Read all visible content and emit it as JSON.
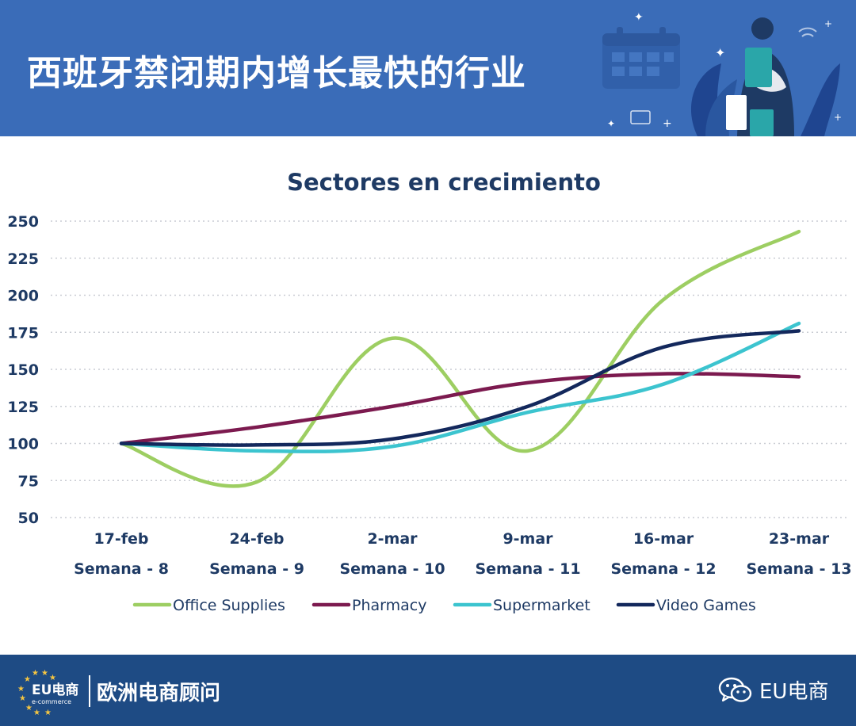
{
  "header": {
    "title": "西班牙禁闭期内增长最快的行业"
  },
  "footer": {
    "logo_text": "EU电商",
    "logo_subtext": "e-commerce",
    "org_name": "欧洲电商顾问",
    "wechat_label": "EU电商"
  },
  "colors": {
    "header_bg": "#3a6cb8",
    "footer_bg": "#1e4b84",
    "title_text": "#1e3a64"
  },
  "chart_data": {
    "type": "line",
    "title": "Sectores en crecimiento",
    "xlabel": "",
    "ylabel": "",
    "ylim": [
      50,
      250
    ],
    "yticks": [
      50,
      75,
      100,
      125,
      150,
      175,
      200,
      225,
      250
    ],
    "grid": "horizontal dotted",
    "legend_placement": "bottom",
    "categories": [
      "17-feb",
      "24-feb",
      "2-mar",
      "9-mar",
      "16-mar",
      "23-mar"
    ],
    "categories_secondary": [
      "Semana - 8",
      "Semana - 9",
      "Semana - 10",
      "Semana - 11",
      "Semana - 12",
      "Semana - 13"
    ],
    "series": [
      {
        "name": "Office Supplies",
        "color": "#9dce62",
        "values": [
          100,
          74,
          171,
          95,
          197,
          243
        ]
      },
      {
        "name": "Pharmacy",
        "color": "#7c1a4f",
        "values": [
          100,
          111,
          125,
          141,
          147,
          145
        ]
      },
      {
        "name": "Supermarket",
        "color": "#3cc4cf",
        "values": [
          100,
          95,
          98,
          121,
          140,
          181
        ]
      },
      {
        "name": "Video Games",
        "color": "#13285c",
        "values": [
          100,
          99,
          103,
          125,
          165,
          176
        ]
      }
    ]
  }
}
